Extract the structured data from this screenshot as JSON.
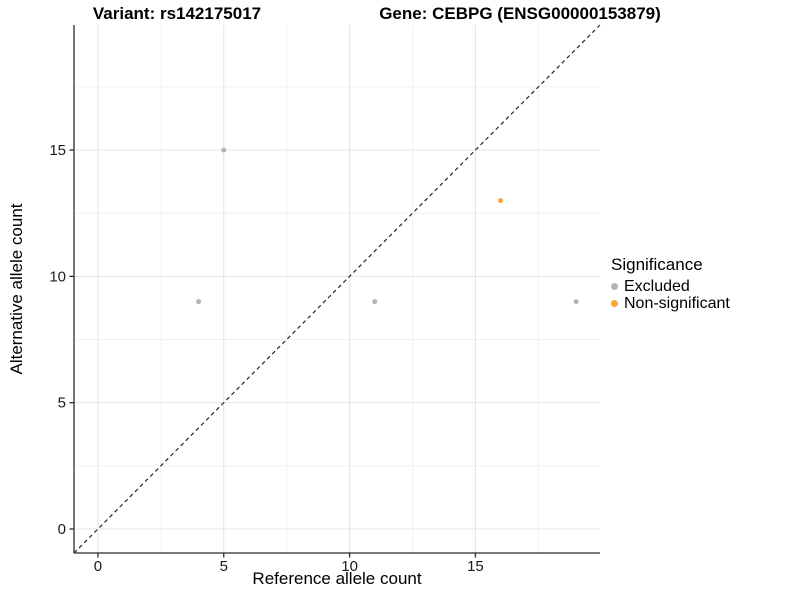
{
  "figure": {
    "title_variant": "Variant: rs142175017",
    "title_gene": "Gene: CEBPG (ENSG00000153879)"
  },
  "chart_data": {
    "type": "scatter",
    "title": "Variant: rs142175017 — Gene: CEBPG (ENSG00000153879)",
    "xlabel": "Reference allele count",
    "ylabel": "Alternative allele count",
    "xlim": [
      -0.95,
      19.95
    ],
    "ylim": [
      -0.95,
      19.95
    ],
    "x_ticks": [
      0,
      5,
      10,
      15
    ],
    "y_ticks": [
      0,
      5,
      10,
      15
    ],
    "x_minor_ticks": [
      2.5,
      7.5,
      12.5,
      17.5
    ],
    "y_minor_ticks": [
      2.5,
      7.5,
      12.5,
      17.5
    ],
    "grid": "major+minor",
    "identity_line": {
      "style": "dashed",
      "from": [
        -0.95,
        -0.95
      ],
      "to": [
        19.95,
        19.95
      ],
      "color": "#262626"
    },
    "series": [
      {
        "name": "Excluded",
        "color": "#b3b3b3",
        "points": [
          [
            5,
            15
          ],
          [
            4,
            9
          ],
          [
            11,
            9
          ],
          [
            19,
            9
          ]
        ]
      },
      {
        "name": "Non-significant",
        "color": "#faa43a",
        "points": [
          [
            16,
            13
          ]
        ]
      }
    ],
    "legend": {
      "title": "Significance",
      "position": "right"
    }
  },
  "colors": {
    "major_grid": "#e4e4e4",
    "minor_grid": "#f1f1f1",
    "axis_line": "#2b2b2b",
    "tick_mark": "#2b2b2b",
    "text": "#000000"
  }
}
